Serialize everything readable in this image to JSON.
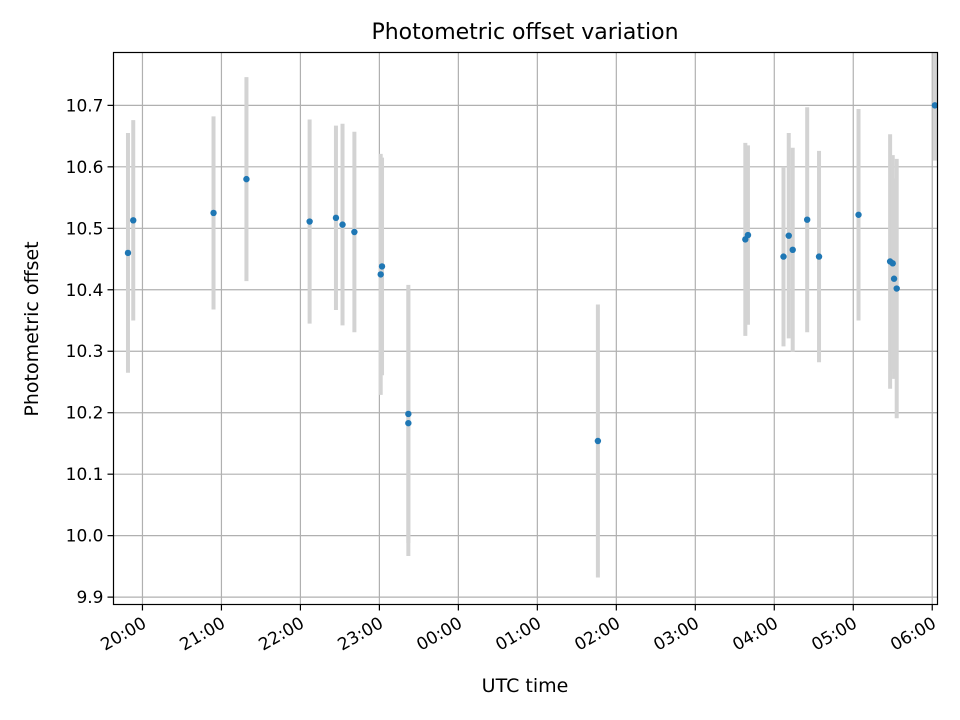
{
  "chart_data": {
    "type": "scatter",
    "title": "Photometric offset variation",
    "xlabel": "UTC time",
    "ylabel": "Photometric offset",
    "grid": true,
    "xlim": [
      "19:38",
      "06:04"
    ],
    "ylim": [
      9.888,
      10.786
    ],
    "x_ticks": [
      "20:00",
      "21:00",
      "22:00",
      "23:00",
      "00:00",
      "01:00",
      "02:00",
      "03:00",
      "04:00",
      "05:00",
      "06:00"
    ],
    "y_ticks": [
      "9.9",
      "10.0",
      "10.1",
      "10.2",
      "10.3",
      "10.4",
      "10.5",
      "10.6",
      "10.7"
    ],
    "point_color": "#1f77b4",
    "errorbar_color": "#d3d3d3",
    "points": [
      {
        "x": "19:49",
        "y": 10.46,
        "err": 0.195
      },
      {
        "x": "19:53",
        "y": 10.513,
        "err": 0.163
      },
      {
        "x": "20:54",
        "y": 10.525,
        "err": 0.157
      },
      {
        "x": "21:19",
        "y": 10.58,
        "err": 0.166
      },
      {
        "x": "22:07",
        "y": 10.511,
        "err": 0.166
      },
      {
        "x": "22:27",
        "y": 10.517,
        "err": 0.15
      },
      {
        "x": "22:32",
        "y": 10.506,
        "err": 0.164
      },
      {
        "x": "22:41",
        "y": 10.494,
        "err": 0.163
      },
      {
        "x": "23:01",
        "y": 10.425,
        "err": 0.196
      },
      {
        "x": "23:02",
        "y": 10.438,
        "err": 0.177
      },
      {
        "x": "23:22",
        "y": 10.198,
        "err": 0.21
      },
      {
        "x": "23:22",
        "y": 10.183,
        "err": 0.216
      },
      {
        "x": "01:46",
        "y": 10.154,
        "err": 0.222
      },
      {
        "x": "03:38",
        "y": 10.482,
        "err": 0.157
      },
      {
        "x": "03:40",
        "y": 10.489,
        "err": 0.146
      },
      {
        "x": "04:07",
        "y": 10.454,
        "err": 0.146
      },
      {
        "x": "04:11",
        "y": 10.488,
        "err": 0.167
      },
      {
        "x": "04:14",
        "y": 10.465,
        "err": 0.166
      },
      {
        "x": "04:25",
        "y": 10.514,
        "err": 0.183
      },
      {
        "x": "04:34",
        "y": 10.454,
        "err": 0.172
      },
      {
        "x": "05:04",
        "y": 10.522,
        "err": 0.172
      },
      {
        "x": "05:28",
        "y": 10.446,
        "err": 0.207
      },
      {
        "x": "05:30",
        "y": 10.443,
        "err": 0.176
      },
      {
        "x": "05:31",
        "y": 10.418,
        "err": 0.163
      },
      {
        "x": "05:33",
        "y": 10.402,
        "err": 0.211
      },
      {
        "x": "06:02",
        "y": 10.7,
        "err": 0.09
      }
    ]
  }
}
